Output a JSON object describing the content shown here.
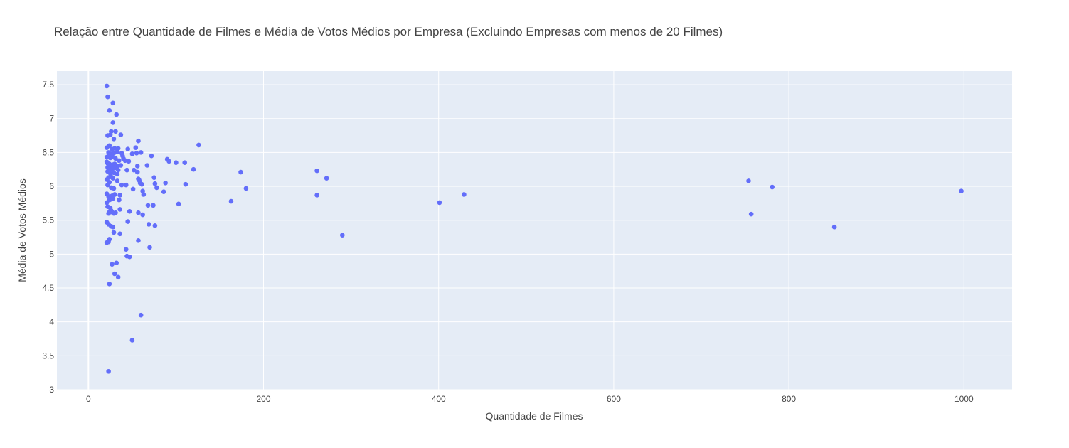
{
  "chart_data": {
    "type": "scatter",
    "title": "Relação entre Quantidade de Filmes e Média de Votos Médios por Empresa (Excluindo Empresas com menos de 20 Filmes)",
    "xlabel": "Quantidade de Filmes",
    "ylabel": "Média de Votos Médios",
    "xlim": [
      -36,
      1055
    ],
    "ylim": [
      3.0,
      7.7
    ],
    "xticks": [
      0,
      200,
      400,
      600,
      800,
      1000
    ],
    "yticks": [
      3,
      3.5,
      4,
      4.5,
      5,
      5.5,
      6,
      6.5,
      7,
      7.5
    ],
    "grid": true,
    "legend": "none",
    "marker_color": "#636efa",
    "plot_bgcolor": "#e5ecf6",
    "series": [
      {
        "points": [
          [
            21,
            7.48
          ],
          [
            22,
            7.32
          ],
          [
            24,
            7.12
          ],
          [
            28,
            7.23
          ],
          [
            32,
            7.06
          ],
          [
            26,
            6.81
          ],
          [
            31,
            6.81
          ],
          [
            28,
            6.94
          ],
          [
            22,
            6.75
          ],
          [
            25,
            6.76
          ],
          [
            37,
            6.76
          ],
          [
            29,
            6.7
          ],
          [
            21,
            6.57
          ],
          [
            24,
            6.6
          ],
          [
            27,
            6.55
          ],
          [
            30,
            6.56
          ],
          [
            34,
            6.56
          ],
          [
            23,
            6.5
          ],
          [
            26,
            6.48
          ],
          [
            29,
            6.49
          ],
          [
            33,
            6.51
          ],
          [
            38,
            6.49
          ],
          [
            21,
            6.43
          ],
          [
            23,
            6.45
          ],
          [
            25,
            6.42
          ],
          [
            27,
            6.44
          ],
          [
            31,
            6.41
          ],
          [
            35,
            6.38
          ],
          [
            40,
            6.41
          ],
          [
            21,
            6.36
          ],
          [
            22,
            6.34
          ],
          [
            24,
            6.33
          ],
          [
            26,
            6.31
          ],
          [
            28,
            6.32
          ],
          [
            30,
            6.33
          ],
          [
            33,
            6.3
          ],
          [
            37,
            6.31
          ],
          [
            22,
            6.28
          ],
          [
            24,
            6.26
          ],
          [
            27,
            6.25
          ],
          [
            30,
            6.27
          ],
          [
            34,
            6.24
          ],
          [
            22,
            6.22
          ],
          [
            25,
            6.19
          ],
          [
            29,
            6.2
          ],
          [
            33,
            6.18
          ],
          [
            21,
            6.1
          ],
          [
            23,
            6.13
          ],
          [
            26,
            6.14
          ],
          [
            28,
            6.12
          ],
          [
            24,
            6.06
          ],
          [
            22,
            6.02
          ],
          [
            26,
            5.98
          ],
          [
            29,
            5.97
          ],
          [
            33,
            6.08
          ],
          [
            38,
            6.02
          ],
          [
            21,
            5.89
          ],
          [
            23,
            5.85
          ],
          [
            25,
            5.84
          ],
          [
            27,
            5.86
          ],
          [
            30,
            5.88
          ],
          [
            24,
            5.8
          ],
          [
            26,
            5.81
          ],
          [
            28,
            5.82
          ],
          [
            36,
            5.87
          ],
          [
            21,
            5.76
          ],
          [
            22,
            5.7
          ],
          [
            25,
            5.68
          ],
          [
            26,
            5.64
          ],
          [
            31,
            5.61
          ],
          [
            23,
            5.6
          ],
          [
            27,
            5.62
          ],
          [
            29,
            5.6
          ],
          [
            21,
            5.47
          ],
          [
            23,
            5.44
          ],
          [
            26,
            5.41
          ],
          [
            28,
            5.4
          ],
          [
            24,
            5.62
          ],
          [
            36,
            5.66
          ],
          [
            35,
            5.8
          ],
          [
            29,
            5.32
          ],
          [
            36,
            5.3
          ],
          [
            24,
            5.22
          ],
          [
            23,
            5.18
          ],
          [
            21,
            5.17
          ],
          [
            32,
            4.87
          ],
          [
            27,
            4.85
          ],
          [
            30,
            4.71
          ],
          [
            34,
            4.66
          ],
          [
            24,
            4.56
          ],
          [
            23,
            3.27
          ],
          [
            45,
            6.55
          ],
          [
            42,
            6.38
          ],
          [
            44,
            6.24
          ],
          [
            39,
            6.45
          ],
          [
            43,
            6.02
          ],
          [
            46,
            6.37
          ],
          [
            50,
            6.48
          ],
          [
            52,
            6.24
          ],
          [
            54,
            6.57
          ],
          [
            55,
            6.49
          ],
          [
            56,
            6.3
          ],
          [
            57,
            6.67
          ],
          [
            60,
            6.5
          ],
          [
            56,
            6.21
          ],
          [
            57,
            6.11
          ],
          [
            59,
            6.05
          ],
          [
            61,
            6.03
          ],
          [
            62,
            5.93
          ],
          [
            63,
            5.88
          ],
          [
            58,
            6.09
          ],
          [
            67,
            6.31
          ],
          [
            51,
            5.96
          ],
          [
            45,
            5.48
          ],
          [
            47,
            5.63
          ],
          [
            57,
            5.61
          ],
          [
            62,
            5.58
          ],
          [
            68,
            5.72
          ],
          [
            74,
            5.72
          ],
          [
            69,
            5.44
          ],
          [
            76,
            5.42
          ],
          [
            43,
            5.07
          ],
          [
            44,
            4.97
          ],
          [
            47,
            4.96
          ],
          [
            57,
            5.2
          ],
          [
            70,
            5.1
          ],
          [
            60,
            4.1
          ],
          [
            50,
            3.73
          ],
          [
            72,
            6.45
          ],
          [
            75,
            6.13
          ],
          [
            76,
            6.04
          ],
          [
            78,
            5.98
          ],
          [
            86,
            5.92
          ],
          [
            88,
            6.05
          ],
          [
            90,
            6.4
          ],
          [
            92,
            6.37
          ],
          [
            100,
            6.35
          ],
          [
            103,
            5.74
          ],
          [
            110,
            6.35
          ],
          [
            111,
            6.03
          ],
          [
            120,
            6.25
          ],
          [
            126,
            6.61
          ],
          [
            163,
            5.78
          ],
          [
            174,
            6.21
          ],
          [
            180,
            5.97
          ],
          [
            261,
            6.23
          ],
          [
            261,
            5.87
          ],
          [
            272,
            6.12
          ],
          [
            290,
            5.28
          ],
          [
            401,
            5.76
          ],
          [
            429,
            5.88
          ],
          [
            754,
            6.08
          ],
          [
            757,
            5.59
          ],
          [
            781,
            5.99
          ],
          [
            852,
            5.4
          ],
          [
            997,
            5.93
          ]
        ]
      }
    ]
  }
}
